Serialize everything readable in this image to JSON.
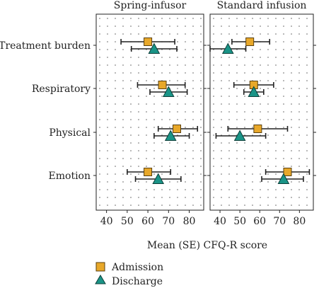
{
  "chart_data": {
    "type": "scatter",
    "panels": [
      {
        "title": "Spring-infusor",
        "categories": [
          "Treatment burden",
          "Respiratory",
          "Physical",
          "Emotion"
        ],
        "series": [
          {
            "name": "Admission",
            "values": [
              60,
              67,
              74,
              60
            ],
            "err_low": [
              47,
              55,
              65,
              50
            ],
            "err_high": [
              73,
              78,
              84,
              71
            ]
          },
          {
            "name": "Discharge",
            "values": [
              63,
              70,
              71,
              65
            ],
            "err_low": [
              52,
              61,
              63,
              54
            ],
            "err_high": [
              74,
              79,
              80,
              76
            ]
          }
        ]
      },
      {
        "title": "Standard infusion",
        "categories": [
          "Treatment burden",
          "Respiratory",
          "Physical",
          "Emotion"
        ],
        "series": [
          {
            "name": "Admission",
            "values": [
              55,
              57,
              59,
              74
            ],
            "err_low": [
              46,
              47,
              44,
              63
            ],
            "err_high": [
              65,
              67,
              74,
              85
            ]
          },
          {
            "name": "Discharge",
            "values": [
              44,
              57,
              50,
              72
            ],
            "err_low": [
              35,
              52,
              38,
              61
            ],
            "err_high": [
              53,
              62,
              63,
              82
            ]
          }
        ]
      }
    ],
    "xlabel": "Mean (SE) CFQ-R score",
    "xlim": [
      35,
      87
    ],
    "xticks": [
      40,
      50,
      60,
      70,
      80
    ],
    "grid": "dotted",
    "legend": {
      "position": "bottom",
      "entries": [
        "Admission",
        "Discharge"
      ]
    },
    "colors": {
      "Admission": "#e8a82a",
      "Discharge": "#1a9487"
    }
  }
}
